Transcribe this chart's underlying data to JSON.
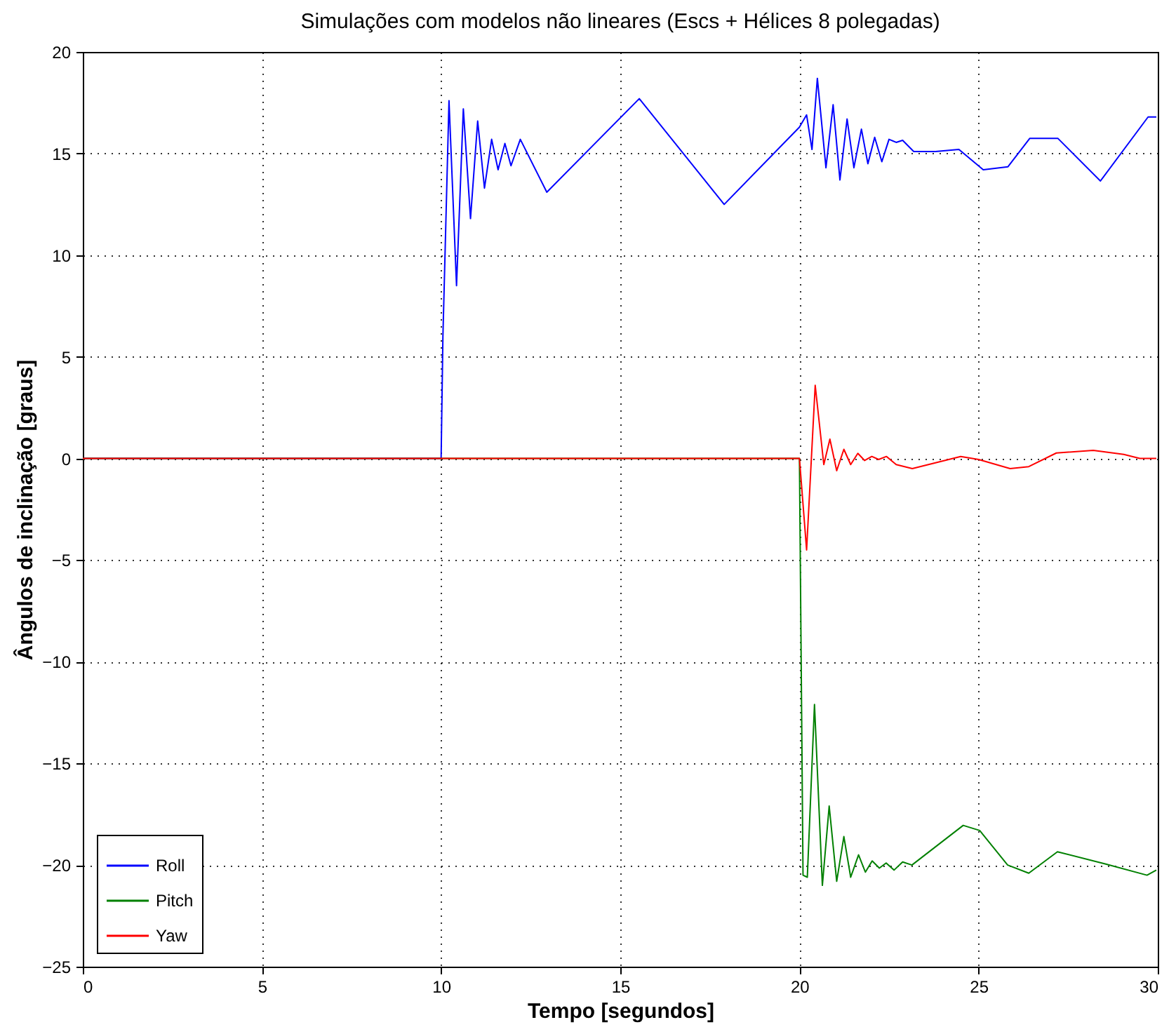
{
  "chart_data": {
    "type": "line",
    "title": "Simulações com modelos não lineares (Escs + Hélices 8 polegadas)",
    "xlabel": "Tempo [segundos]",
    "ylabel": "Ângulos de inclinação [graus]",
    "xlim": [
      0,
      30
    ],
    "ylim": [
      -25,
      20
    ],
    "xticks": [
      0,
      5,
      10,
      15,
      20,
      25,
      30
    ],
    "yticks": [
      -25,
      -20,
      -15,
      -10,
      -5,
      0,
      5,
      10,
      15,
      20
    ],
    "grid": true,
    "legend": "bottom left",
    "line_style": "solid",
    "series": [
      {
        "name": "Roll",
        "color": "#0000ff",
        "x": [
          0,
          10.0,
          10.05,
          10.22,
          10.43,
          10.62,
          10.82,
          11.02,
          11.21,
          11.41,
          11.59,
          11.78,
          11.95,
          12.21,
          12.95,
          15.53,
          17.9,
          20.0,
          20.2,
          20.35,
          20.5,
          20.74,
          20.94,
          21.13,
          21.33,
          21.52,
          21.73,
          21.91,
          22.1,
          22.3,
          22.5,
          22.7,
          22.88,
          23.19,
          23.8,
          24.45,
          25.13,
          25.82,
          26.43,
          27.21,
          28.4,
          29.73,
          29.96
        ],
        "values": [
          0,
          0,
          6,
          17.6,
          8.5,
          17.2,
          11.8,
          16.6,
          13.3,
          15.7,
          14.2,
          15.5,
          14.4,
          15.7,
          13.1,
          17.7,
          12.5,
          16.3,
          16.9,
          15.2,
          18.7,
          14.3,
          17.4,
          13.7,
          16.7,
          14.3,
          16.2,
          14.5,
          15.8,
          14.6,
          15.7,
          15.55,
          15.65,
          15.1,
          15.1,
          15.2,
          14.2,
          14.35,
          15.75,
          15.75,
          13.65,
          16.8,
          16.8
        ]
      },
      {
        "name": "Pitch",
        "color": "#008000",
        "x": [
          0,
          20.0,
          20.1,
          20.22,
          20.42,
          20.64,
          20.83,
          21.04,
          21.24,
          21.43,
          21.65,
          21.84,
          22.03,
          22.23,
          22.42,
          22.64,
          22.88,
          23.14,
          24.57,
          25.03,
          25.81,
          26.4,
          27.2,
          28.55,
          29.7,
          29.96
        ],
        "values": [
          0,
          0,
          -20.5,
          -20.6,
          -12.1,
          -21.0,
          -17.1,
          -20.8,
          -18.6,
          -20.6,
          -19.5,
          -20.35,
          -19.8,
          -20.15,
          -19.9,
          -20.25,
          -19.85,
          -20.0,
          -18.05,
          -18.3,
          -20.0,
          -20.4,
          -19.35,
          -19.95,
          -20.5,
          -20.25
        ]
      },
      {
        "name": "Yaw",
        "color": "#ff0000",
        "x": [
          0,
          20.0,
          20.2,
          20.44,
          20.68,
          20.85,
          21.04,
          21.24,
          21.43,
          21.63,
          21.82,
          22.02,
          22.21,
          22.43,
          22.7,
          23.15,
          24.5,
          25.0,
          25.88,
          26.4,
          27.17,
          28.2,
          29.05,
          29.5,
          29.96
        ],
        "values": [
          0,
          0,
          -4.5,
          3.6,
          -0.3,
          0.95,
          -0.6,
          0.45,
          -0.3,
          0.25,
          -0.1,
          0.1,
          -0.05,
          0.1,
          -0.3,
          -0.5,
          0.1,
          -0.05,
          -0.5,
          -0.4,
          0.27,
          0.4,
          0.2,
          0,
          0
        ]
      }
    ]
  }
}
